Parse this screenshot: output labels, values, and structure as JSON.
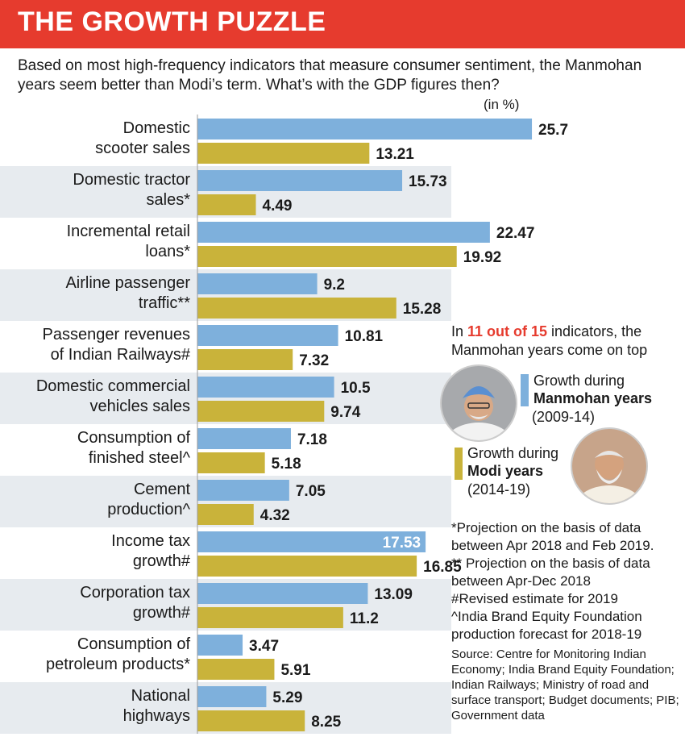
{
  "header": {
    "title": "THE GROWTH PUZZLE",
    "subtitle": "Based on most high-frequency indicators that measure consumer sentiment, the Manmohan years seem better than Modi’s term. What’s with the GDP figures then?",
    "unit": "(in %)"
  },
  "colors": {
    "manmohan": "#7eb0dc",
    "modi": "#c9b33a",
    "accent": "#e63b2e",
    "row_shade": "#e7ebef"
  },
  "chart_data": {
    "type": "bar",
    "orientation": "horizontal",
    "categories": [
      [
        "Domestic",
        "scooter sales"
      ],
      [
        "Domestic tractor",
        "sales*"
      ],
      [
        "Incremental retail",
        "loans*"
      ],
      [
        "Airline passenger",
        "traffic**"
      ],
      [
        "Passenger revenues",
        "of Indian Railways#"
      ],
      [
        "Domestic commercial",
        "vehicles sales"
      ],
      [
        "Consumption of",
        "finished steel^"
      ],
      [
        "Cement",
        "production^"
      ],
      [
        "Income tax",
        "growth#"
      ],
      [
        "Corporation tax",
        "growth#"
      ],
      [
        "Consumption of",
        "petroleum products*"
      ],
      [
        "National",
        "highways"
      ]
    ],
    "series": [
      {
        "name": "Growth during Manmohan years (2009-14)",
        "values": [
          25.7,
          15.73,
          22.47,
          9.2,
          10.81,
          10.5,
          7.18,
          7.05,
          17.53,
          13.09,
          3.47,
          5.29
        ]
      },
      {
        "name": "Growth during Modi years (2014-19)",
        "values": [
          13.21,
          4.49,
          19.92,
          15.28,
          7.32,
          9.74,
          5.18,
          4.32,
          16.85,
          11.2,
          5.91,
          8.25
        ]
      }
    ],
    "value_labels": [
      [
        "25.7",
        "13.21"
      ],
      [
        "15.73",
        "4.49"
      ],
      [
        "22.47",
        "19.92"
      ],
      [
        "9.2",
        "15.28"
      ],
      [
        "10.81",
        "7.32"
      ],
      [
        "10.5",
        "9.74"
      ],
      [
        "7.18",
        "5.18"
      ],
      [
        "7.05",
        "4.32"
      ],
      [
        "17.53",
        "16.85"
      ],
      [
        "13.09",
        "11.2"
      ],
      [
        "3.47",
        "5.91"
      ],
      [
        "5.29",
        "8.25"
      ]
    ],
    "xlim": [
      0,
      30
    ],
    "grid": false,
    "legend_position": "right"
  },
  "highlight": {
    "pre": "In ",
    "emph": "11 out of 15",
    "post": " indicators, the Manmohan years come on top"
  },
  "legend": {
    "manmohan": {
      "line1": "Growth during",
      "line2": "Manmohan years",
      "line3": "(2009-14)"
    },
    "modi": {
      "line1": "Growth during",
      "line2": "Modi years",
      "line3": "(2014-19)"
    }
  },
  "notes": [
    "*Projection on the basis of data between Apr 2018 and Feb 2019.",
    "** Projection on the basis of data between Apr-Dec 2018",
    "#Revised estimate for 2019",
    "^India Brand Equity Foundation production forecast for 2018-19"
  ],
  "source": "Source: Centre for Monitoring Indian Economy; India Brand Equity Foundation; Indian Railways; Ministry of road and surface transport; Budget documents; PIB; Government data"
}
